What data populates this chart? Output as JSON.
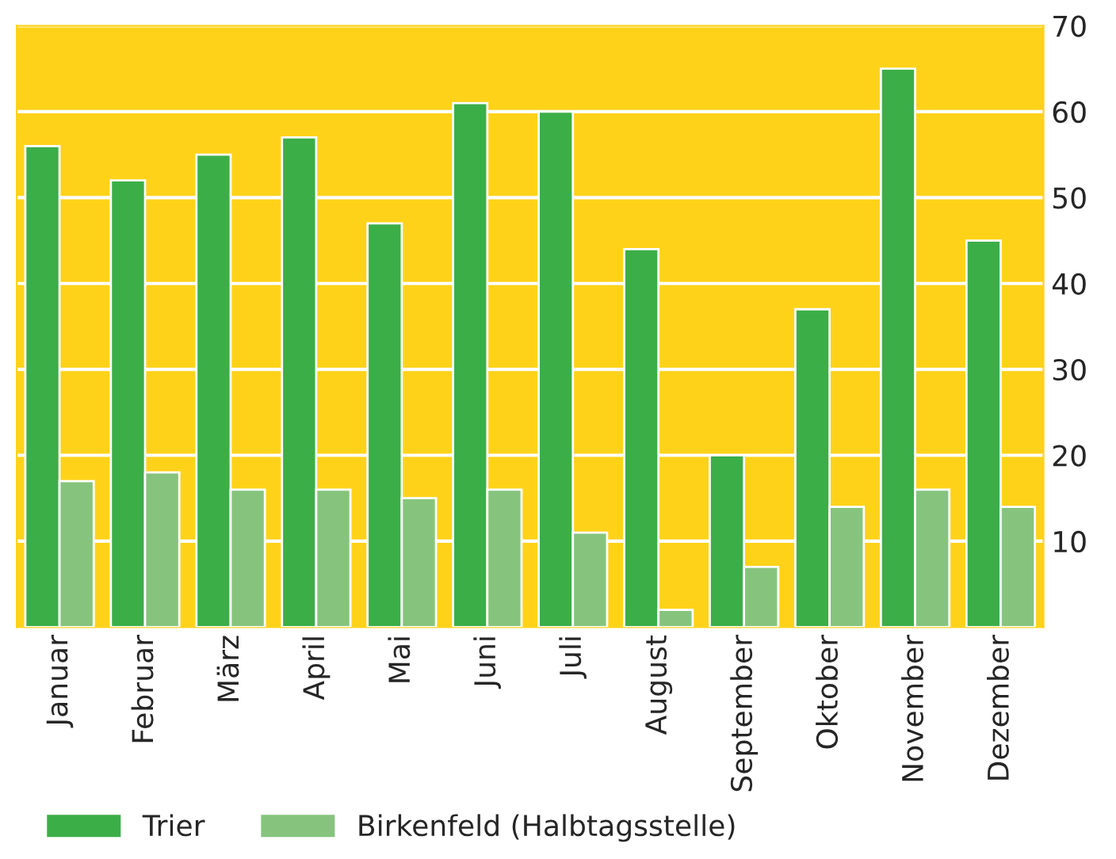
{
  "chart_data": {
    "type": "bar",
    "categories": [
      "Januar",
      "Februar",
      "März",
      "April",
      "Mai",
      "Juni",
      "Juli",
      "August",
      "September",
      "Oktober",
      "November",
      "Dezember"
    ],
    "series": [
      {
        "name": "Trier",
        "color": "#3cae48",
        "values": [
          56,
          52,
          55,
          57,
          47,
          61,
          60,
          44,
          20,
          37,
          65,
          45
        ]
      },
      {
        "name": "Birkenfeld (Halbtagsstelle)",
        "color": "#86c47e",
        "values": [
          17,
          18,
          16,
          16,
          15,
          16,
          11,
          2,
          7,
          14,
          16,
          14
        ]
      }
    ],
    "ylim": [
      0,
      70
    ],
    "yticks": [
      10,
      20,
      30,
      40,
      50,
      60,
      70
    ],
    "grid": "y",
    "legend": "bottom left"
  }
}
